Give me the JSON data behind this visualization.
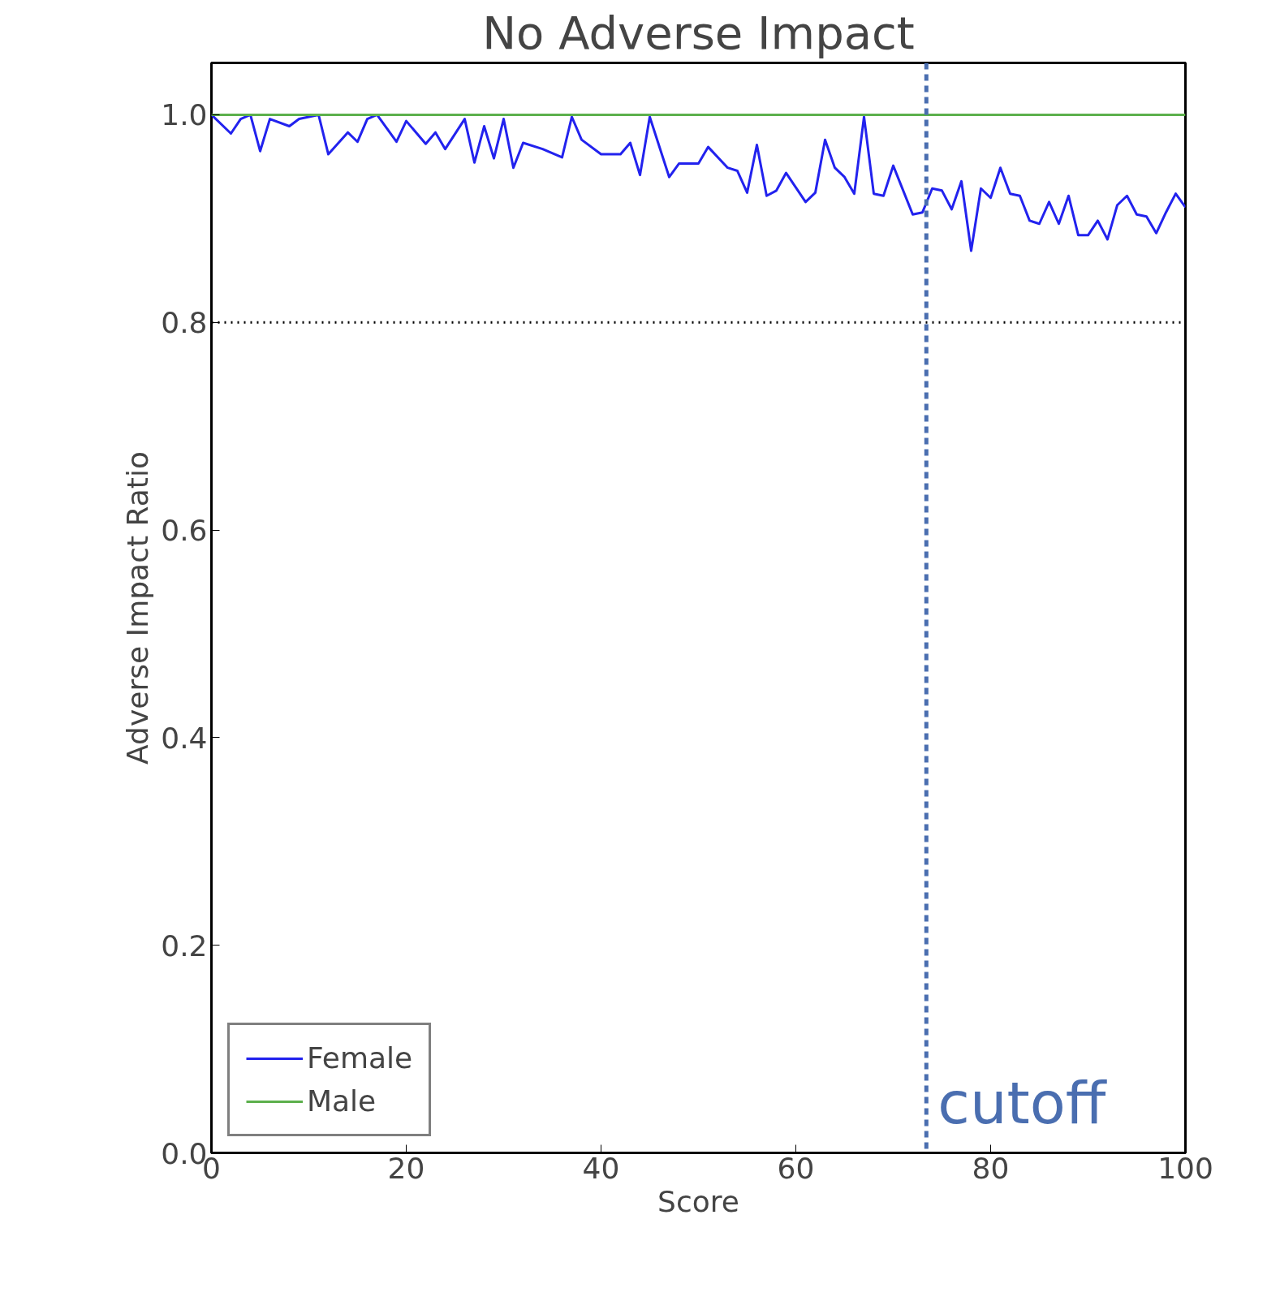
{
  "chart_data": {
    "type": "line",
    "title": "No Adverse Impact",
    "xlabel": "Score",
    "ylabel": "Adverse Impact Ratio",
    "xlim": [
      0,
      100
    ],
    "xticks": [
      0,
      20,
      40,
      60,
      80,
      100
    ],
    "ylim": [
      0,
      1.05
    ],
    "yticks": [
      {
        "value": 0,
        "label": "0.0"
      },
      {
        "value": 0.2,
        "label": "0.2"
      },
      {
        "value": 0.4,
        "label": "0.4"
      },
      {
        "value": 0.6,
        "label": "0.6"
      },
      {
        "value": 0.8,
        "label": "0.8"
      },
      {
        "value": 1,
        "label": "1.0"
      }
    ],
    "series": [
      {
        "name": "Female",
        "color": "#2222ee",
        "x": [
          0,
          2,
          3,
          4,
          5,
          6,
          8,
          9,
          11,
          12,
          14,
          15,
          16,
          17,
          19,
          20,
          22,
          23,
          24,
          26,
          27,
          28,
          29,
          30,
          31,
          32,
          34,
          36,
          37,
          38,
          40,
          42,
          43,
          44,
          45,
          47,
          48,
          50,
          51,
          53,
          54,
          55,
          56,
          57,
          58,
          59,
          61,
          62,
          63,
          64,
          65,
          66,
          67,
          68,
          69,
          70,
          72,
          73,
          74,
          75,
          76,
          77,
          78,
          79,
          80,
          81,
          82,
          83,
          84,
          85,
          86,
          87,
          88,
          89,
          90,
          91,
          92,
          93,
          94,
          95,
          96,
          97,
          98,
          99,
          100
        ],
        "values": [
          1.0,
          0.982,
          0.996,
          1.0,
          0.965,
          0.996,
          0.989,
          0.996,
          1.0,
          0.962,
          0.983,
          0.974,
          0.996,
          1.0,
          0.974,
          0.994,
          0.972,
          0.983,
          0.967,
          0.996,
          0.954,
          0.989,
          0.958,
          0.996,
          0.949,
          0.973,
          0.967,
          0.959,
          0.998,
          0.976,
          0.962,
          0.962,
          0.973,
          0.942,
          0.998,
          0.94,
          0.953,
          0.953,
          0.969,
          0.949,
          0.946,
          0.925,
          0.971,
          0.922,
          0.927,
          0.944,
          0.916,
          0.925,
          0.976,
          0.949,
          0.94,
          0.924,
          0.998,
          0.924,
          0.922,
          0.951,
          0.904,
          0.906,
          0.929,
          0.927,
          0.909,
          0.936,
          0.869,
          0.929,
          0.92,
          0.949,
          0.924,
          0.922,
          0.898,
          0.895,
          0.916,
          0.895,
          0.922,
          0.884,
          0.884,
          0.898,
          0.88,
          0.913,
          0.922,
          0.904,
          0.902,
          0.886,
          0.906,
          0.924,
          0.911
        ]
      },
      {
        "name": "Male",
        "color": "#5cb04c",
        "x": [
          0,
          100
        ],
        "values": [
          1.0,
          1.0
        ]
      }
    ],
    "ref_lines": [
      {
        "axis": "y",
        "value": 0.8,
        "label": null,
        "color": "#000000",
        "line_style": "dotted"
      },
      {
        "axis": "x",
        "value": 73.4,
        "label": "cutoff",
        "color": "#4a6eb0",
        "line_style": "dashed"
      }
    ],
    "legend": "bottom left",
    "grid": false,
    "marker": "none",
    "line_style": "solid"
  }
}
